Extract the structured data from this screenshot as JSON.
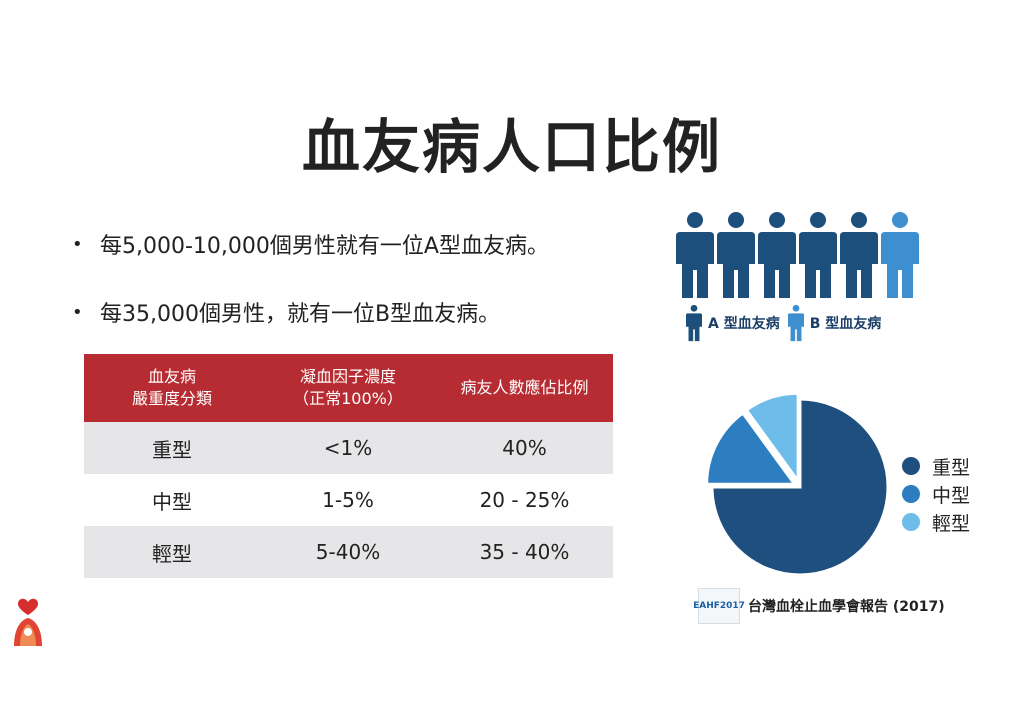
{
  "title": "血友病人口比例",
  "bullets": [
    "每5,000-10,000個男性就有一位A型血友病。",
    "每35,000個男性，就有一位B型血友病。"
  ],
  "table": {
    "headers": [
      "血友病\n嚴重度分類",
      "凝血因子濃度\n（正常100%）",
      "病友人數應佔比例"
    ],
    "rows": [
      [
        "重型",
        "<1%",
        "40%"
      ],
      [
        "中型",
        "1-5%",
        "20 - 25%"
      ],
      [
        "輕型",
        "5-40%",
        "35 - 40%"
      ]
    ]
  },
  "people_legend": {
    "a_label": "A 型血友病",
    "b_label": "B 型血友病",
    "a_count": 5,
    "b_count": 1,
    "a_color": "#1c4f7c",
    "b_color": "#3d8fd0"
  },
  "chart_data": {
    "type": "pie",
    "categories": [
      "重型",
      "中型",
      "輕型"
    ],
    "values": [
      75,
      15,
      10
    ],
    "colors": [
      "#1e4f7e",
      "#2c7ec0",
      "#6dbce9"
    ],
    "legend_position": "right"
  },
  "source": {
    "logo_text": "EAHF2017",
    "text": "台灣血栓止血學會報告 (2017)"
  },
  "colors": {
    "header_red": "#b72c32",
    "row_shade": "#e6e6e8"
  }
}
